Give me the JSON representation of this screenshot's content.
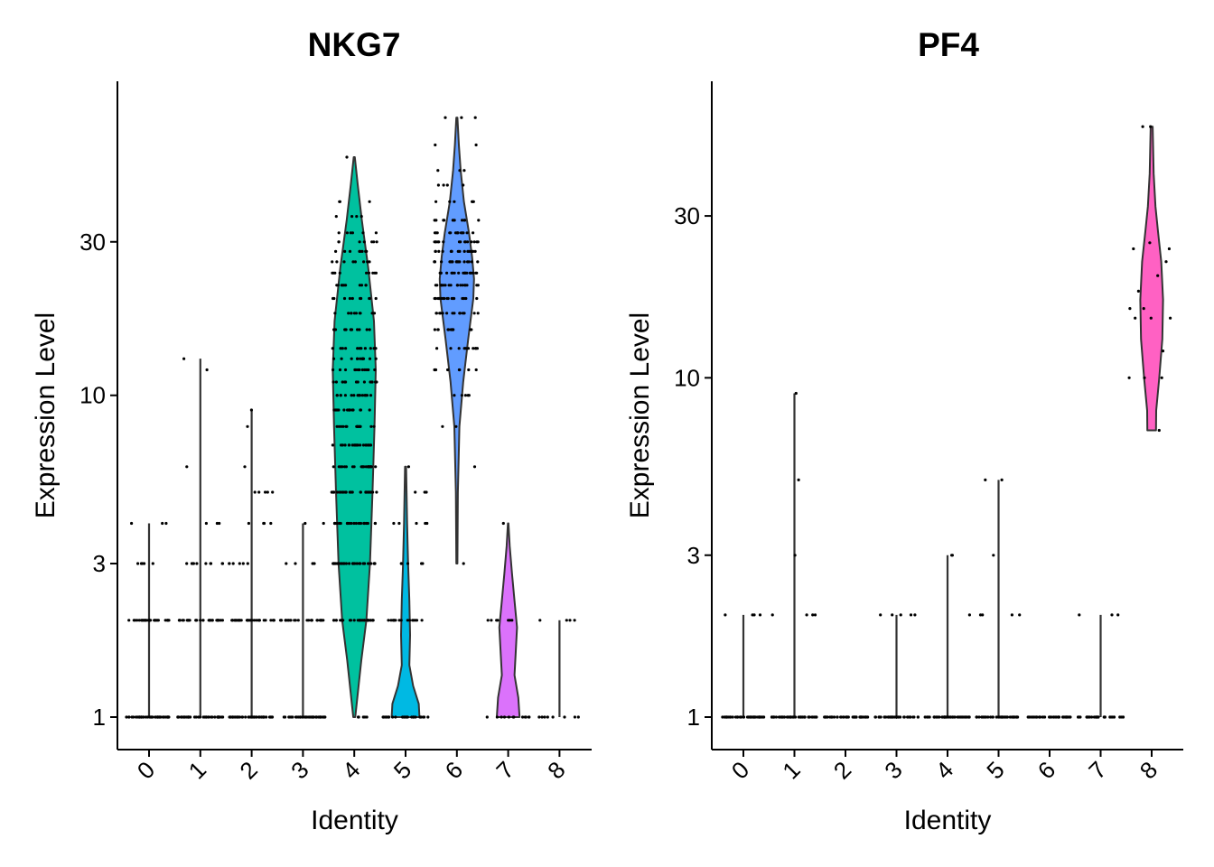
{
  "colors": {
    "cluster": [
      "#F8766D",
      "#D39200",
      "#93AA00",
      "#00BA38",
      "#00C19F",
      "#00B9E3",
      "#619CFF",
      "#DB72FB",
      "#FF61C3"
    ],
    "outline": "#333333",
    "point": "#000000"
  },
  "chart_data": [
    {
      "type": "violin",
      "title": "NKG7",
      "xlabel": "Identity",
      "ylabel": "Expression Level",
      "yscale": "log",
      "ylim": [
        0.8,
        75
      ],
      "yticks": [
        "1",
        "3",
        "10",
        "30"
      ],
      "categories": [
        "0",
        "1",
        "2",
        "3",
        "4",
        "5",
        "6",
        "7",
        "8"
      ],
      "series": [
        {
          "cluster": "0",
          "min": 1,
          "max": 4,
          "violin": false,
          "levels": [
            1,
            2,
            3,
            4
          ],
          "counts": [
            45,
            30,
            5,
            3
          ]
        },
        {
          "cluster": "1",
          "min": 1,
          "max": 13,
          "violin": false,
          "levels": [
            1,
            2,
            3,
            4,
            6,
            12,
            13
          ],
          "counts": [
            45,
            30,
            10,
            3,
            1,
            1,
            1
          ]
        },
        {
          "cluster": "2",
          "min": 1,
          "max": 9,
          "violin": false,
          "levels": [
            1,
            2,
            3,
            4,
            5,
            6,
            8,
            9
          ],
          "counts": [
            45,
            30,
            6,
            4,
            5,
            1,
            1,
            1
          ]
        },
        {
          "cluster": "3",
          "min": 1,
          "max": 4,
          "violin": false,
          "levels": [
            1,
            2,
            3,
            4
          ],
          "counts": [
            40,
            25,
            4,
            2
          ]
        },
        {
          "cluster": "4",
          "min": 1,
          "max": 55,
          "violin": true,
          "profile": [
            [
              1,
              0.04
            ],
            [
              1.5,
              0.28
            ],
            [
              2,
              0.48
            ],
            [
              3,
              0.62
            ],
            [
              5,
              0.72
            ],
            [
              8,
              0.8
            ],
            [
              12,
              0.85
            ],
            [
              17,
              0.78
            ],
            [
              25,
              0.55
            ],
            [
              35,
              0.3
            ],
            [
              45,
              0.14
            ],
            [
              55,
              0.02
            ]
          ],
          "levels": [
            1,
            2,
            3,
            4,
            5,
            6,
            7,
            8,
            9,
            10,
            11,
            12,
            13,
            14,
            16,
            18,
            20,
            22,
            24,
            26,
            28,
            30,
            32,
            36,
            40,
            55
          ],
          "counts": [
            5,
            30,
            30,
            20,
            28,
            24,
            20,
            16,
            16,
            15,
            13,
            12,
            12,
            11,
            12,
            10,
            10,
            10,
            9,
            8,
            8,
            7,
            6,
            4,
            3,
            1
          ]
        },
        {
          "cluster": "5",
          "min": 1,
          "max": 6,
          "violin": true,
          "profile": [
            [
              1,
              0.55
            ],
            [
              1.1,
              0.52
            ],
            [
              1.25,
              0.3
            ],
            [
              1.45,
              0.15
            ],
            [
              1.8,
              0.18
            ],
            [
              2.3,
              0.15
            ],
            [
              3,
              0.1
            ],
            [
              4,
              0.06
            ],
            [
              5,
              0.04
            ],
            [
              6,
              0.02
            ]
          ],
          "levels": [
            1,
            2,
            3,
            4,
            5,
            6
          ],
          "counts": [
            30,
            15,
            5,
            5,
            3,
            1
          ]
        },
        {
          "cluster": "6",
          "min": 3,
          "max": 73,
          "violin": true,
          "profile": [
            [
              3,
              0.02
            ],
            [
              5,
              0.04
            ],
            [
              8,
              0.1
            ],
            [
              11,
              0.25
            ],
            [
              15,
              0.45
            ],
            [
              20,
              0.65
            ],
            [
              23,
              0.68
            ],
            [
              27,
              0.6
            ],
            [
              32,
              0.48
            ],
            [
              40,
              0.28
            ],
            [
              50,
              0.15
            ],
            [
              60,
              0.08
            ],
            [
              73,
              0.02
            ]
          ],
          "levels": [
            3,
            6,
            8,
            10,
            12,
            14,
            16,
            18,
            20,
            22,
            24,
            26,
            28,
            30,
            32,
            35,
            40,
            45,
            50,
            60,
            73
          ],
          "counts": [
            1,
            1,
            2,
            5,
            8,
            10,
            12,
            14,
            16,
            18,
            18,
            18,
            16,
            15,
            14,
            10,
            6,
            4,
            3,
            2,
            3
          ]
        },
        {
          "cluster": "7",
          "min": 1,
          "max": 4,
          "violin": true,
          "profile": [
            [
              1,
              0.45
            ],
            [
              1.15,
              0.4
            ],
            [
              1.35,
              0.25
            ],
            [
              1.6,
              0.3
            ],
            [
              1.9,
              0.35
            ],
            [
              2.3,
              0.25
            ],
            [
              2.8,
              0.15
            ],
            [
              3.4,
              0.06
            ],
            [
              4,
              0.01
            ]
          ],
          "levels": [
            1,
            2,
            4
          ],
          "counts": [
            12,
            7,
            1
          ]
        },
        {
          "cluster": "8",
          "min": 1,
          "max": 2,
          "violin": false,
          "levels": [
            1,
            2
          ],
          "counts": [
            8,
            4
          ]
        }
      ]
    },
    {
      "type": "violin",
      "title": "PF4",
      "xlabel": "Identity",
      "ylabel": "Expression Level",
      "yscale": "log",
      "ylim": [
        0.8,
        60
      ],
      "yticks": [
        "1",
        "3",
        "10",
        "30"
      ],
      "categories": [
        "0",
        "1",
        "2",
        "3",
        "4",
        "5",
        "6",
        "7",
        "8"
      ],
      "series": [
        {
          "cluster": "0",
          "min": 1,
          "max": 2,
          "violin": false,
          "levels": [
            1,
            2
          ],
          "counts": [
            45,
            4
          ]
        },
        {
          "cluster": "1",
          "min": 1,
          "max": 9,
          "violin": false,
          "levels": [
            1,
            2,
            3,
            5,
            9
          ],
          "counts": [
            45,
            4,
            1,
            1,
            1
          ]
        },
        {
          "cluster": "2",
          "min": 1,
          "max": 1,
          "violin": false,
          "levels": [
            1
          ],
          "counts": [
            45
          ]
        },
        {
          "cluster": "3",
          "min": 1,
          "max": 2,
          "violin": false,
          "levels": [
            1,
            2
          ],
          "counts": [
            40,
            5
          ]
        },
        {
          "cluster": "4",
          "min": 1,
          "max": 3,
          "violin": false,
          "levels": [
            1,
            2,
            3
          ],
          "counts": [
            45,
            1,
            2
          ]
        },
        {
          "cluster": "5",
          "min": 1,
          "max": 5,
          "violin": false,
          "levels": [
            1,
            2,
            3,
            5
          ],
          "counts": [
            40,
            4,
            1,
            2
          ]
        },
        {
          "cluster": "6",
          "min": 1,
          "max": 1,
          "violin": false,
          "levels": [
            1
          ],
          "counts": [
            40
          ]
        },
        {
          "cluster": "7",
          "min": 1,
          "max": 2,
          "violin": false,
          "levels": [
            1,
            2
          ],
          "counts": [
            35,
            3
          ]
        },
        {
          "cluster": "8",
          "min": 7,
          "max": 55,
          "violin": true,
          "profile": [
            [
              7,
              0.17
            ],
            [
              8,
              0.18
            ],
            [
              10,
              0.3
            ],
            [
              13,
              0.42
            ],
            [
              17,
              0.45
            ],
            [
              22,
              0.38
            ],
            [
              27,
              0.25
            ],
            [
              32,
              0.15
            ],
            [
              40,
              0.08
            ],
            [
              55,
              0.04
            ]
          ],
          "levels": [
            7,
            10,
            12,
            15,
            16,
            18,
            20,
            22,
            24,
            25,
            55
          ],
          "counts": [
            1,
            3,
            1,
            3,
            2,
            1,
            1,
            1,
            2,
            1,
            2
          ]
        }
      ]
    }
  ]
}
